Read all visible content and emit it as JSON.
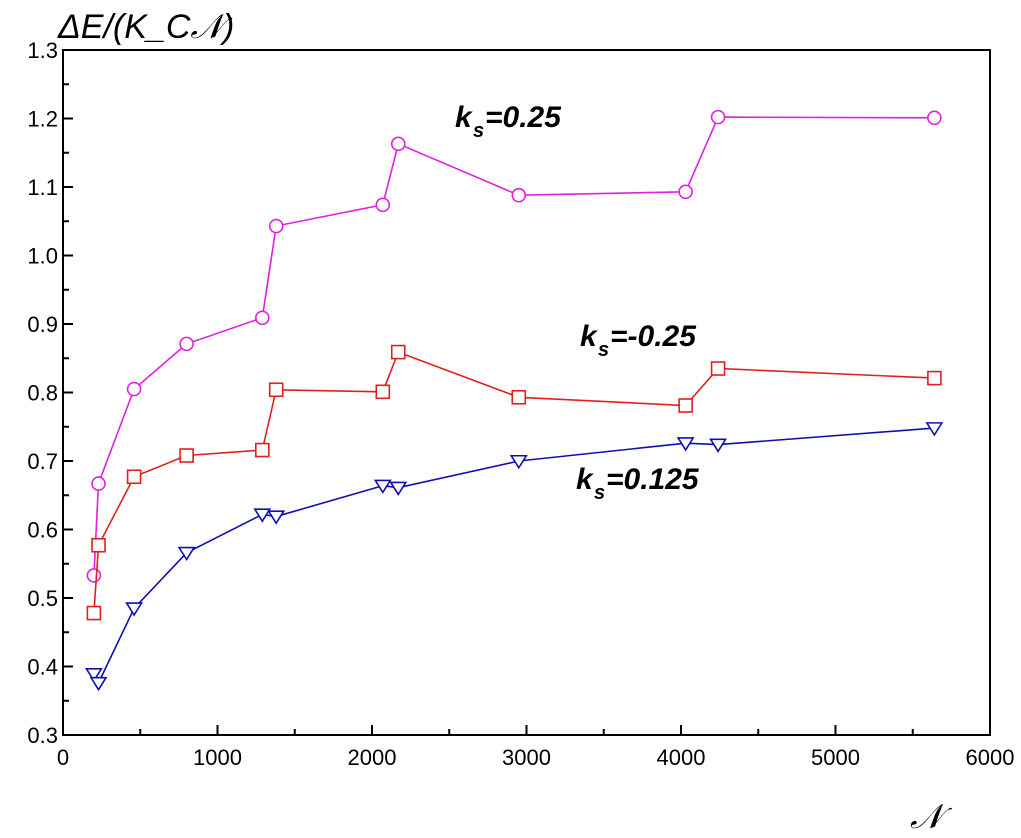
{
  "chart_data": {
    "type": "line",
    "title": "",
    "ylabel": "ΔE/(K_C𝒩)",
    "xlabel": "𝒩",
    "xlim": [
      0,
      6000
    ],
    "ylim": [
      0.3,
      1.3
    ],
    "x_ticks": [
      0,
      1000,
      2000,
      3000,
      4000,
      5000,
      6000
    ],
    "y_ticks": [
      0.3,
      0.4,
      0.5,
      0.6,
      0.7,
      0.8,
      0.9,
      1.0,
      1.1,
      1.2,
      1.3
    ],
    "x_tick_labels": [
      "0",
      "1000",
      "2000",
      "3000",
      "4000",
      "5000",
      "6000"
    ],
    "y_tick_labels": [
      "0.3",
      "0.4",
      "0.5",
      "0.6",
      "0.7",
      "0.8",
      "0.9",
      "1.0",
      "1.1",
      "1.2",
      "1.3"
    ],
    "grid": false,
    "series": [
      {
        "name": "k_s=0.25",
        "label_main": "k",
        "label_sub": "s",
        "label_rest": "=0.25",
        "color": "#e020e0",
        "marker": "circle",
        "points": [
          [
            200,
            0.533
          ],
          [
            230,
            0.667
          ],
          [
            460,
            0.805
          ],
          [
            800,
            0.871
          ],
          [
            1290,
            0.909
          ],
          [
            1380,
            1.043
          ],
          [
            2070,
            1.074
          ],
          [
            2170,
            1.163
          ],
          [
            2950,
            1.088
          ],
          [
            4030,
            1.093
          ],
          [
            4240,
            1.202
          ],
          [
            5640,
            1.201
          ]
        ]
      },
      {
        "name": "k_s=-0.25",
        "label_main": "k",
        "label_sub": "s",
        "label_rest": "=-0.25",
        "color": "#e02020",
        "marker": "square",
        "points": [
          [
            200,
            0.478
          ],
          [
            230,
            0.577
          ],
          [
            460,
            0.677
          ],
          [
            800,
            0.708
          ],
          [
            1290,
            0.716
          ],
          [
            1380,
            0.804
          ],
          [
            2070,
            0.801
          ],
          [
            2170,
            0.859
          ],
          [
            2950,
            0.793
          ],
          [
            4030,
            0.781
          ],
          [
            4240,
            0.835
          ],
          [
            5640,
            0.821
          ]
        ]
      },
      {
        "name": "k_s=0.125",
        "label_main": "k",
        "label_sub": "s",
        "label_rest": "=0.125",
        "color": "#1010b0",
        "marker": "triangle-down",
        "points": [
          [
            200,
            0.389
          ],
          [
            230,
            0.376
          ],
          [
            460,
            0.485
          ],
          [
            800,
            0.566
          ],
          [
            1290,
            0.622
          ],
          [
            1380,
            0.619
          ],
          [
            2070,
            0.664
          ],
          [
            2170,
            0.661
          ],
          [
            2950,
            0.7
          ],
          [
            4030,
            0.726
          ],
          [
            4240,
            0.724
          ],
          [
            5640,
            0.748
          ]
        ]
      }
    ]
  }
}
